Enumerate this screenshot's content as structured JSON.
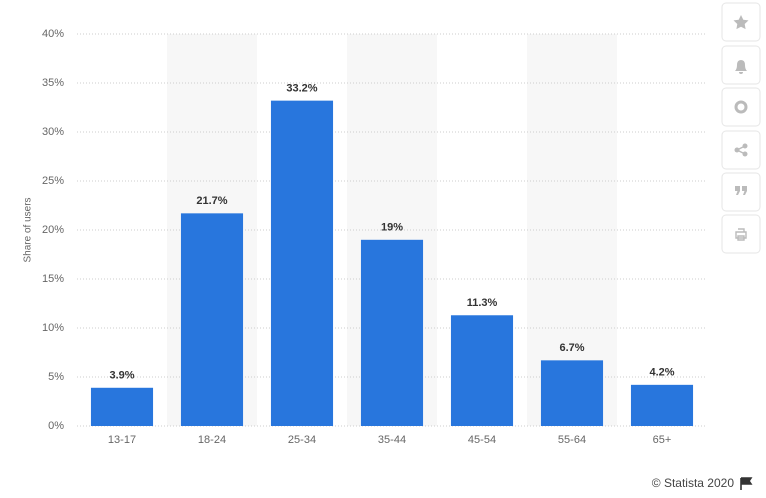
{
  "chart_data": {
    "type": "bar",
    "y_label": "Share of users",
    "categories": [
      "13-17",
      "18-24",
      "25-34",
      "35-44",
      "45-54",
      "55-64",
      "65+"
    ],
    "values": [
      3.9,
      21.7,
      33.2,
      19,
      11.3,
      6.7,
      4.2
    ],
    "value_labels": [
      "3.9%",
      "21.7%",
      "33.2%",
      "19%",
      "11.3%",
      "6.7%",
      "4.2%"
    ],
    "color": "#2876dd",
    "ylim": [
      0,
      40
    ],
    "yticks": [
      {
        "value": 0,
        "label": "0%"
      },
      {
        "value": 5,
        "label": "5%"
      },
      {
        "value": 10,
        "label": "10%"
      },
      {
        "value": 15,
        "label": "15%"
      },
      {
        "value": 20,
        "label": "20%"
      },
      {
        "value": 25,
        "label": "25%"
      },
      {
        "value": 30,
        "label": "30%"
      },
      {
        "value": 35,
        "label": "35%"
      },
      {
        "value": 40,
        "label": "40%"
      }
    ],
    "grid": true,
    "source": "© Statista 2020"
  }
}
